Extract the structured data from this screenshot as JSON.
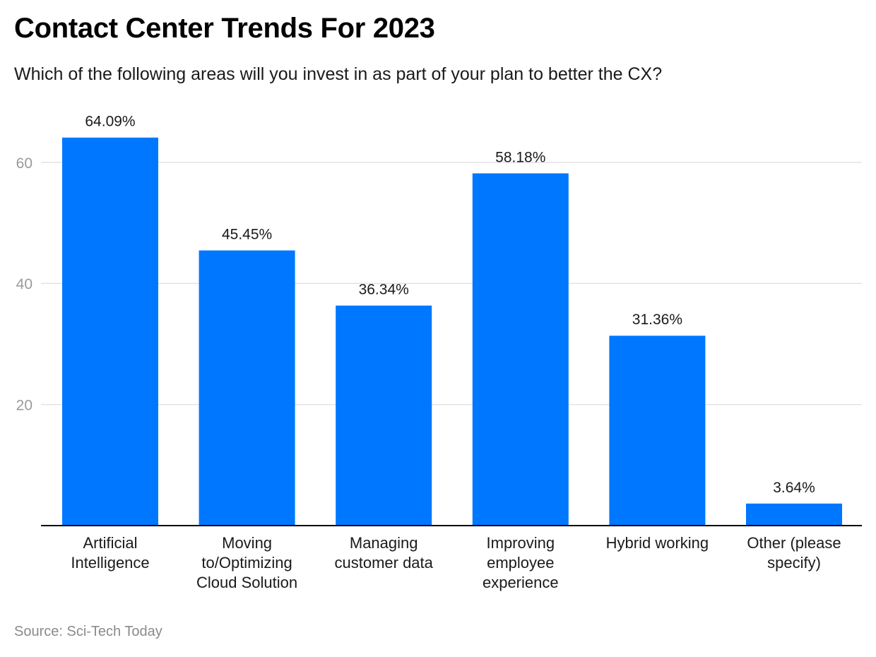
{
  "header": {
    "title": "Contact Center Trends For 2023",
    "subtitle": "Which of the following areas will you invest in as part of your plan to better the CX?"
  },
  "footer": {
    "source": "Source: Sci-Tech Today"
  },
  "colors": {
    "bar": "#0077ff",
    "grid": "#e3e3e3",
    "axis": "#000000",
    "tick_label": "#9a9a9a",
    "value_label": "#1a1a1a"
  },
  "chart_data": {
    "type": "bar",
    "title": "Contact Center Trends For 2023",
    "subtitle": "Which of the following areas will you invest in as part of your plan to better the CX?",
    "categories": [
      [
        "Artificial",
        "Intelligence"
      ],
      [
        "Moving",
        "to/Optimizing",
        "Cloud Solution"
      ],
      [
        "Managing",
        "customer data"
      ],
      [
        "Improving",
        "employee",
        "experience"
      ],
      [
        "Hybrid working"
      ],
      [
        "Other (please",
        "specify)"
      ]
    ],
    "values": [
      64.09,
      45.45,
      36.34,
      58.18,
      31.36,
      3.64
    ],
    "value_labels": [
      "64.09%",
      "45.45%",
      "36.34%",
      "58.18%",
      "31.36%",
      "3.64%"
    ],
    "yticks": [
      20,
      40,
      60
    ],
    "ylim": [
      0,
      70
    ],
    "grid": true,
    "legend": "none",
    "source": "Source: Sci-Tech Today"
  }
}
